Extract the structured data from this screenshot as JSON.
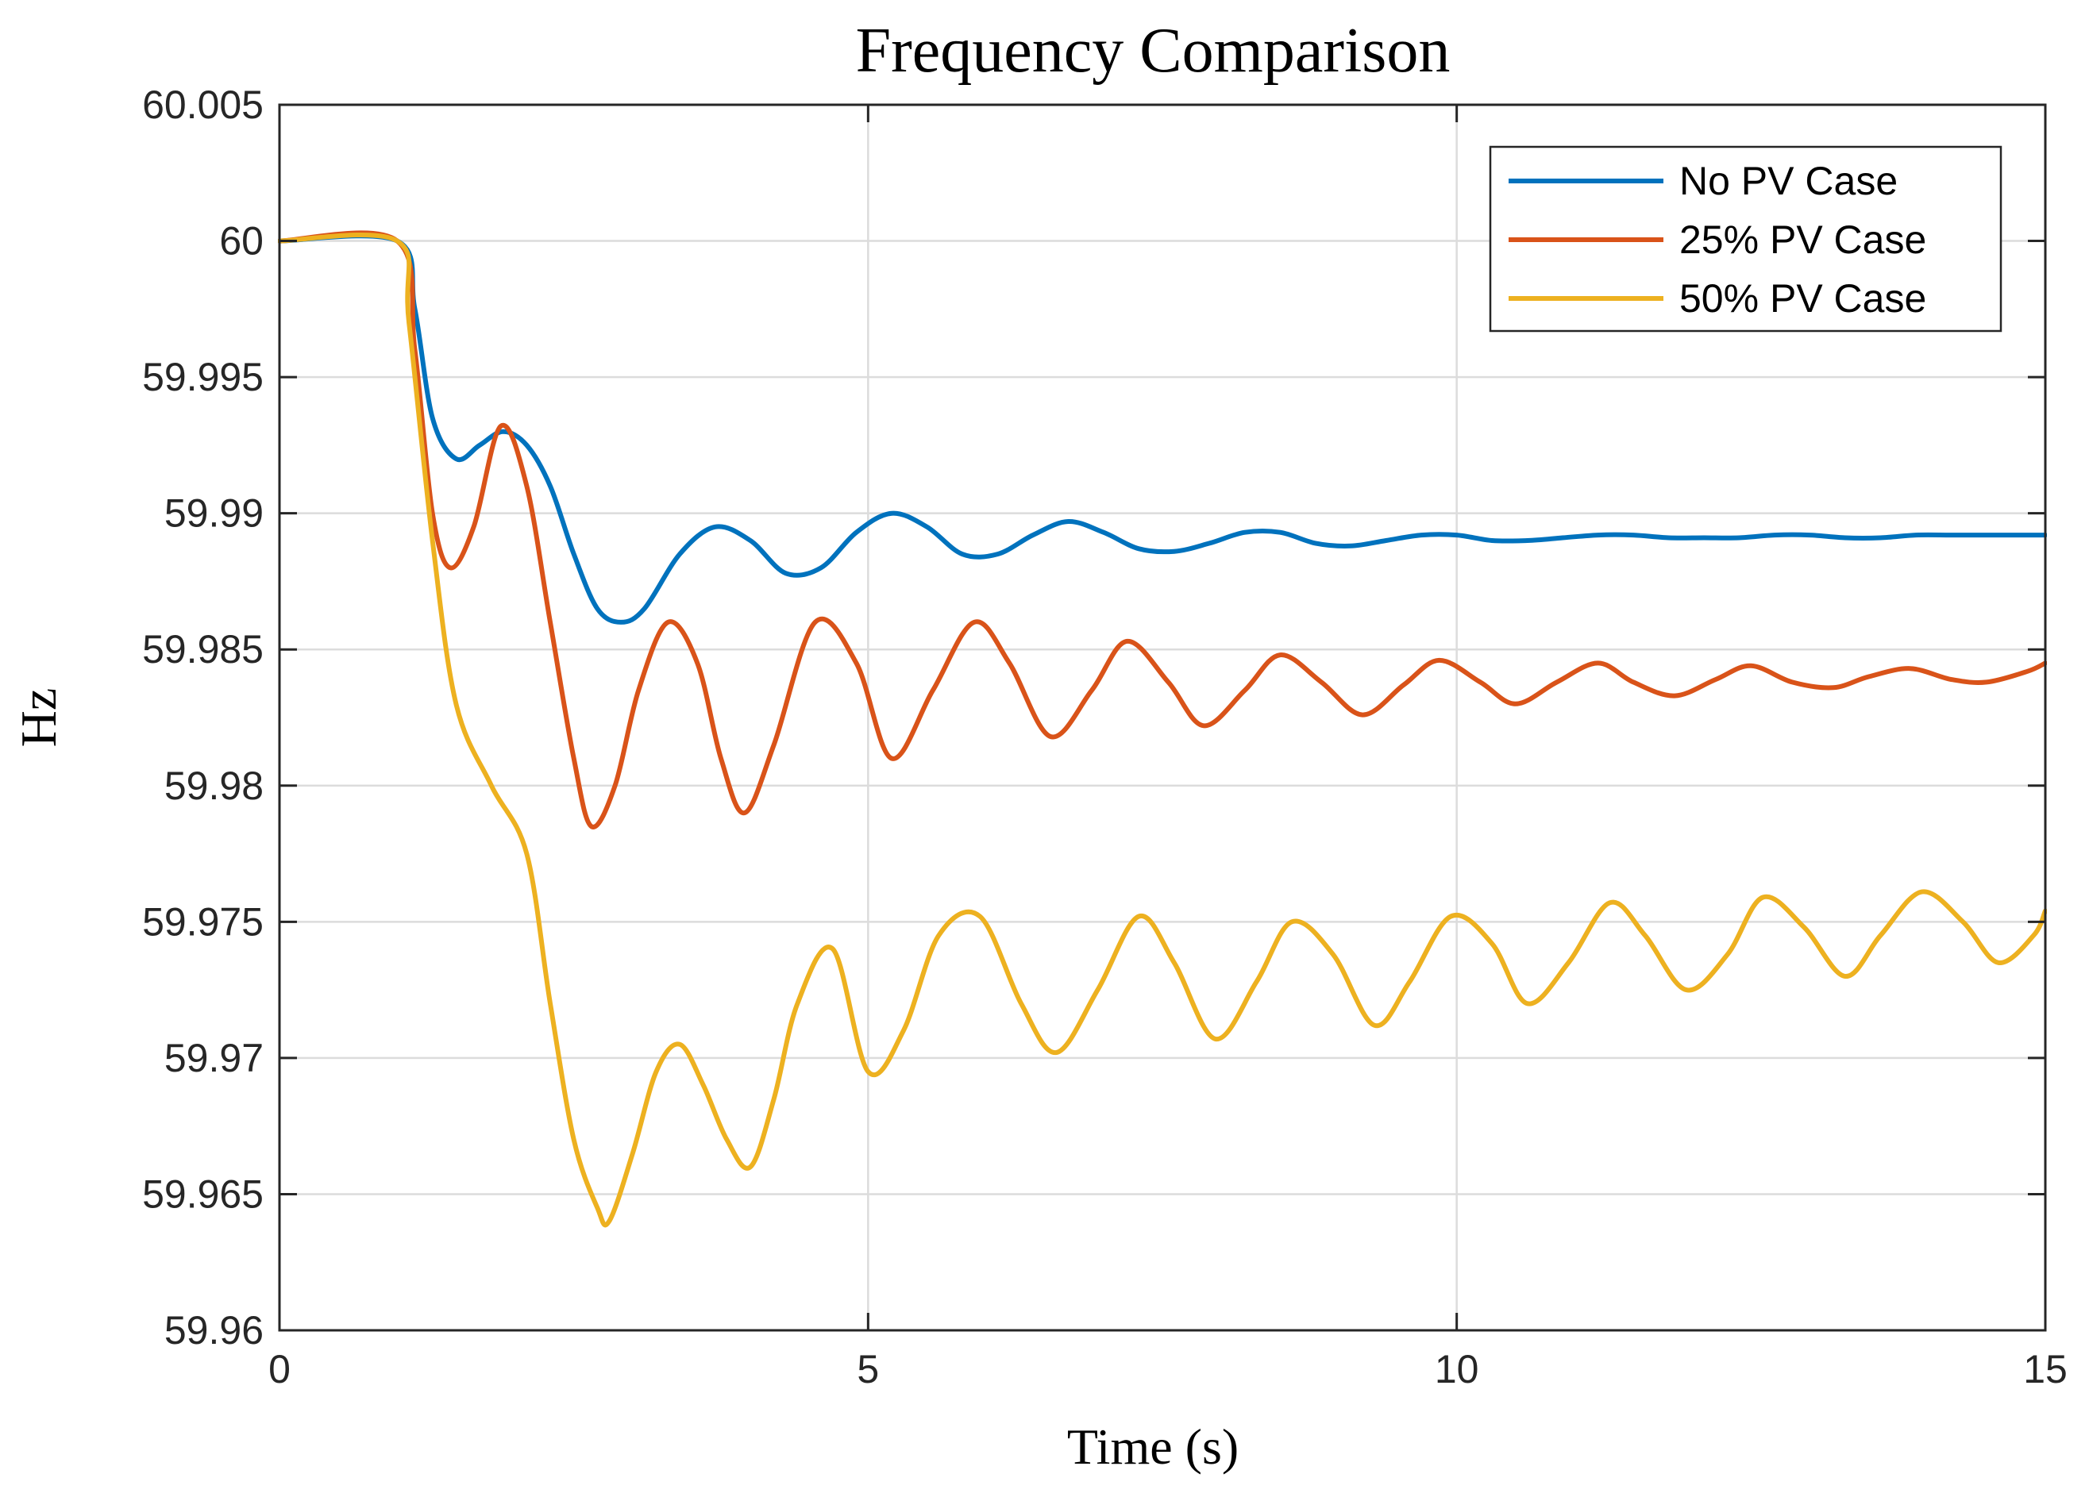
{
  "chart_data": {
    "type": "line",
    "title": "Frequency Comparison",
    "xlabel": "Time (s)",
    "ylabel": "Hz",
    "xlim": [
      0,
      15
    ],
    "ylim": [
      59.96,
      60.005
    ],
    "xticks": [
      0,
      5,
      10,
      15
    ],
    "xtick_labels": [
      "0",
      "5",
      "10",
      "15"
    ],
    "yticks": [
      59.96,
      59.965,
      59.97,
      59.975,
      59.98,
      59.985,
      59.99,
      59.995,
      60,
      60.005
    ],
    "ytick_labels": [
      "59.96",
      "59.965",
      "59.97",
      "59.975",
      "59.98",
      "59.985",
      "59.99",
      "59.995",
      "60",
      "60.005"
    ],
    "grid": true,
    "legend_position": "top-right",
    "series": [
      {
        "name": "No PV Case",
        "color": "#0072BD",
        "x": [
          0,
          1,
          1.15,
          1.3,
          1.5,
          1.7,
          1.9,
          2.1,
          2.3,
          2.5,
          2.7,
          2.9,
          3.1,
          3.4,
          3.7,
          4.0,
          4.3,
          4.6,
          4.9,
          5.2,
          5.5,
          5.8,
          6.1,
          6.4,
          6.7,
          7.0,
          7.3,
          7.6,
          7.9,
          8.2,
          8.5,
          8.8,
          9.1,
          9.4,
          9.7,
          10.0,
          10.3,
          10.6,
          10.9,
          11.2,
          11.5,
          11.8,
          12.1,
          12.4,
          12.7,
          13.0,
          13.3,
          13.6,
          13.9,
          14.2,
          14.5,
          14.8,
          15.0
        ],
        "y": [
          60,
          60,
          59.9975,
          59.9935,
          59.992,
          59.9925,
          59.993,
          59.9925,
          59.991,
          59.9885,
          59.9865,
          59.986,
          59.9865,
          59.9885,
          59.9895,
          59.989,
          59.9878,
          59.988,
          59.9893,
          59.99,
          59.9895,
          59.9885,
          59.9885,
          59.9892,
          59.9897,
          59.9893,
          59.9887,
          59.9886,
          59.9889,
          59.9893,
          59.9893,
          59.9889,
          59.9888,
          59.989,
          59.9892,
          59.9892,
          59.989,
          59.989,
          59.9891,
          59.9892,
          59.9892,
          59.9891,
          59.9891,
          59.9891,
          59.9892,
          59.9892,
          59.9891,
          59.9891,
          59.9892,
          59.9892,
          59.9892,
          59.9892,
          59.9892
        ]
      },
      {
        "name": "25% PV Case",
        "color": "#D95319",
        "x": [
          0,
          1,
          1.15,
          1.3,
          1.45,
          1.65,
          1.88,
          2.1,
          2.3,
          2.5,
          2.65,
          2.85,
          3.05,
          3.3,
          3.55,
          3.75,
          3.95,
          4.2,
          4.55,
          4.9,
          5.2,
          5.55,
          5.9,
          6.2,
          6.55,
          6.9,
          7.2,
          7.55,
          7.85,
          8.2,
          8.5,
          8.85,
          9.2,
          9.55,
          9.85,
          10.2,
          10.5,
          10.85,
          11.2,
          11.5,
          11.85,
          12.2,
          12.5,
          12.85,
          13.2,
          13.5,
          13.85,
          14.2,
          14.5,
          14.85,
          15.0
        ],
        "y": [
          60,
          60,
          59.996,
          59.99,
          59.988,
          59.9895,
          59.9932,
          59.991,
          59.986,
          59.981,
          59.9785,
          59.98,
          59.9835,
          59.986,
          59.9845,
          59.981,
          59.979,
          59.9815,
          59.986,
          59.9845,
          59.981,
          59.9835,
          59.986,
          59.9845,
          59.9818,
          59.9835,
          59.9853,
          59.9838,
          59.9822,
          59.9835,
          59.9848,
          59.9838,
          59.9826,
          59.9837,
          59.9846,
          59.9838,
          59.983,
          59.9838,
          59.9845,
          59.9838,
          59.9833,
          59.9839,
          59.9844,
          59.9838,
          59.9836,
          59.984,
          59.9843,
          59.9839,
          59.9838,
          59.9842,
          59.9845
        ]
      },
      {
        "name": "50% PV Case",
        "color": "#EDB120",
        "x": [
          0,
          1,
          1.1,
          1.3,
          1.5,
          1.8,
          2.1,
          2.3,
          2.5,
          2.7,
          2.8,
          3.0,
          3.2,
          3.4,
          3.6,
          3.8,
          4.0,
          4.2,
          4.4,
          4.7,
          5.0,
          5.3,
          5.6,
          5.95,
          6.3,
          6.6,
          6.95,
          7.3,
          7.6,
          7.95,
          8.3,
          8.6,
          8.95,
          9.3,
          9.6,
          9.95,
          10.3,
          10.6,
          10.95,
          11.3,
          11.6,
          11.95,
          12.3,
          12.6,
          12.95,
          13.3,
          13.6,
          13.95,
          14.3,
          14.6,
          14.9,
          15.0
        ],
        "y": [
          60,
          60,
          59.997,
          59.989,
          59.983,
          59.98,
          59.9775,
          59.972,
          59.967,
          59.9645,
          59.964,
          59.9665,
          59.9695,
          59.9705,
          59.969,
          59.967,
          59.966,
          59.9685,
          59.972,
          59.974,
          59.9695,
          59.971,
          59.9745,
          59.9752,
          59.972,
          59.9702,
          59.9725,
          59.9752,
          59.9735,
          59.9707,
          59.9728,
          59.975,
          59.9738,
          59.9712,
          59.9728,
          59.9752,
          59.9742,
          59.972,
          59.9735,
          59.9757,
          59.9745,
          59.9725,
          59.9738,
          59.9759,
          59.9748,
          59.973,
          59.9745,
          59.9761,
          59.975,
          59.9735,
          59.9745,
          59.9754
        ]
      }
    ]
  }
}
